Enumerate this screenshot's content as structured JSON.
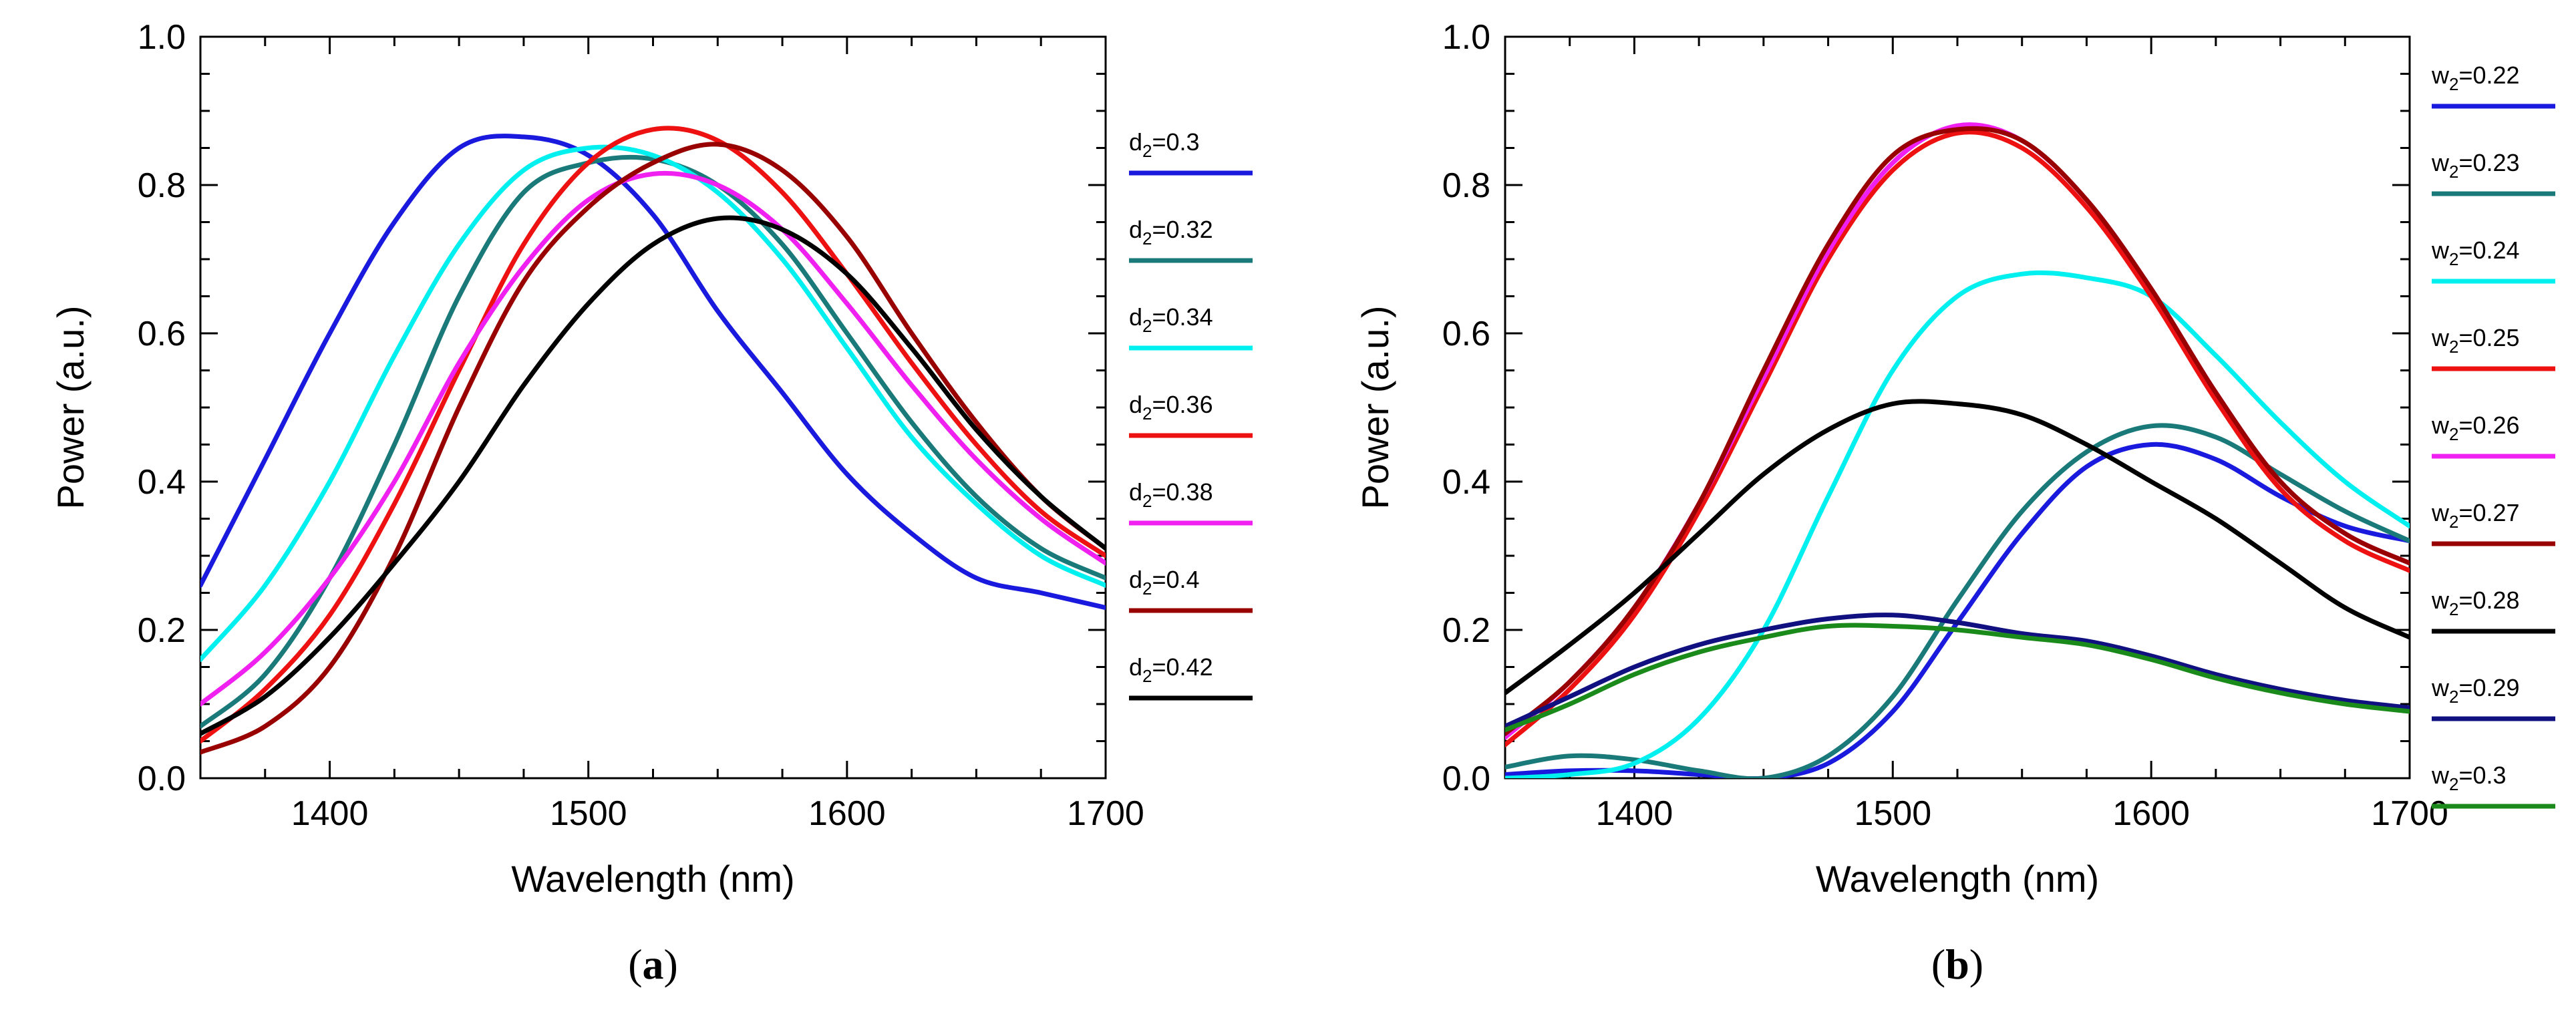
{
  "chart_data": [
    {
      "panel_label_prefix": "(",
      "panel_label_letter": "a",
      "panel_label_suffix": ")",
      "type": "line",
      "xlabel": "Wavelength (nm)",
      "ylabel": "Power (a.u.)",
      "xlim": [
        1350,
        1700
      ],
      "ylim": [
        0,
        1.0
      ],
      "xticks": [
        1400,
        1500,
        1600,
        1700
      ],
      "yticks": [
        0.0,
        0.2,
        0.4,
        0.6,
        0.8,
        1.0
      ],
      "ytick_labels": [
        "0.0",
        "0.2",
        "0.4",
        "0.6",
        "0.8",
        "1.0"
      ],
      "legend_position": "right",
      "series": [
        {
          "name": "d2=0.3",
          "label_base": "d",
          "label_sub": "2",
          "label_value": "=0.3",
          "color": "#1a1adf",
          "x": [
            1350,
            1375,
            1400,
            1425,
            1450,
            1475,
            1500,
            1525,
            1550,
            1575,
            1600,
            1625,
            1650,
            1675,
            1700
          ],
          "y": [
            0.26,
            0.43,
            0.6,
            0.75,
            0.85,
            0.865,
            0.84,
            0.76,
            0.63,
            0.52,
            0.41,
            0.33,
            0.27,
            0.25,
            0.23
          ]
        },
        {
          "name": "d2=0.32",
          "label_base": "d",
          "label_sub": "2",
          "label_value": "=0.32",
          "color": "#1a7a7a",
          "x": [
            1350,
            1375,
            1400,
            1425,
            1450,
            1475,
            1500,
            1525,
            1550,
            1575,
            1600,
            1625,
            1650,
            1675,
            1700
          ],
          "y": [
            0.07,
            0.14,
            0.27,
            0.45,
            0.65,
            0.79,
            0.83,
            0.835,
            0.8,
            0.72,
            0.6,
            0.48,
            0.38,
            0.31,
            0.27
          ]
        },
        {
          "name": "d2=0.34",
          "label_base": "d",
          "label_sub": "2",
          "label_value": "=0.34",
          "color": "#00f0f0",
          "x": [
            1350,
            1375,
            1400,
            1425,
            1450,
            1475,
            1500,
            1525,
            1550,
            1575,
            1600,
            1625,
            1650,
            1675,
            1700
          ],
          "y": [
            0.16,
            0.26,
            0.4,
            0.57,
            0.72,
            0.82,
            0.85,
            0.84,
            0.79,
            0.7,
            0.58,
            0.46,
            0.37,
            0.3,
            0.26
          ]
        },
        {
          "name": "d2=0.36",
          "label_base": "d",
          "label_sub": "2",
          "label_value": "=0.36",
          "color": "#ee1111",
          "x": [
            1350,
            1375,
            1400,
            1425,
            1450,
            1475,
            1500,
            1525,
            1550,
            1575,
            1600,
            1625,
            1650,
            1675,
            1700
          ],
          "y": [
            0.05,
            0.12,
            0.22,
            0.37,
            0.55,
            0.72,
            0.83,
            0.875,
            0.86,
            0.79,
            0.68,
            0.56,
            0.45,
            0.36,
            0.3
          ]
        },
        {
          "name": "d2=0.38",
          "label_base": "d",
          "label_sub": "2",
          "label_value": "=0.38",
          "color": "#f020f0",
          "x": [
            1350,
            1375,
            1400,
            1425,
            1450,
            1475,
            1500,
            1525,
            1550,
            1575,
            1600,
            1625,
            1650,
            1675,
            1700
          ],
          "y": [
            0.1,
            0.17,
            0.27,
            0.4,
            0.56,
            0.69,
            0.78,
            0.815,
            0.8,
            0.74,
            0.64,
            0.53,
            0.43,
            0.35,
            0.29
          ]
        },
        {
          "name": "d2=0.4",
          "label_base": "d",
          "label_sub": "2",
          "label_value": "=0.4",
          "color": "#990000",
          "x": [
            1350,
            1375,
            1400,
            1425,
            1450,
            1475,
            1500,
            1525,
            1550,
            1575,
            1600,
            1625,
            1650,
            1675,
            1700
          ],
          "y": [
            0.035,
            0.07,
            0.15,
            0.3,
            0.5,
            0.67,
            0.77,
            0.83,
            0.855,
            0.82,
            0.73,
            0.6,
            0.48,
            0.38,
            0.31
          ]
        },
        {
          "name": "d2=0.42",
          "label_base": "d",
          "label_sub": "2",
          "label_value": "=0.42",
          "color": "#000000",
          "x": [
            1350,
            1375,
            1400,
            1425,
            1450,
            1475,
            1500,
            1525,
            1550,
            1575,
            1600,
            1625,
            1650,
            1675,
            1700
          ],
          "y": [
            0.06,
            0.11,
            0.19,
            0.29,
            0.4,
            0.53,
            0.64,
            0.72,
            0.755,
            0.74,
            0.68,
            0.58,
            0.47,
            0.38,
            0.31
          ]
        }
      ]
    },
    {
      "panel_label_prefix": "(",
      "panel_label_letter": "b",
      "panel_label_suffix": ")",
      "type": "line",
      "xlabel": "Wavelength (nm)",
      "ylabel": "Power (a.u.)",
      "xlim": [
        1350,
        1700
      ],
      "ylim": [
        0,
        1.0
      ],
      "xticks": [
        1400,
        1500,
        1600,
        1700
      ],
      "yticks": [
        0.0,
        0.2,
        0.4,
        0.6,
        0.8,
        1.0
      ],
      "ytick_labels": [
        "0.0",
        "0.2",
        "0.4",
        "0.6",
        "0.8",
        "1.0"
      ],
      "legend_position": "right",
      "series": [
        {
          "name": "w2=0.22",
          "label_base": "w",
          "label_sub": "2",
          "label_value": "=0.22",
          "color": "#1a1adf",
          "x": [
            1350,
            1375,
            1400,
            1425,
            1450,
            1475,
            1500,
            1525,
            1550,
            1575,
            1600,
            1625,
            1650,
            1675,
            1700
          ],
          "y": [
            0.005,
            0.01,
            0.01,
            0.005,
            0.0,
            0.02,
            0.09,
            0.21,
            0.33,
            0.42,
            0.45,
            0.43,
            0.38,
            0.34,
            0.32
          ]
        },
        {
          "name": "w2=0.23",
          "label_base": "w",
          "label_sub": "2",
          "label_value": "=0.23",
          "color": "#1a7a7a",
          "x": [
            1350,
            1375,
            1400,
            1425,
            1450,
            1475,
            1500,
            1525,
            1550,
            1575,
            1600,
            1625,
            1650,
            1675,
            1700
          ],
          "y": [
            0.015,
            0.03,
            0.025,
            0.01,
            0.0,
            0.03,
            0.11,
            0.24,
            0.36,
            0.44,
            0.475,
            0.46,
            0.41,
            0.36,
            0.32
          ]
        },
        {
          "name": "w2=0.24",
          "label_base": "w",
          "label_sub": "2",
          "label_value": "=0.24",
          "color": "#00f0f0",
          "x": [
            1350,
            1375,
            1400,
            1425,
            1450,
            1475,
            1500,
            1525,
            1550,
            1575,
            1600,
            1625,
            1650,
            1675,
            1700
          ],
          "y": [
            0.0,
            0.005,
            0.02,
            0.08,
            0.2,
            0.38,
            0.55,
            0.65,
            0.68,
            0.675,
            0.65,
            0.57,
            0.48,
            0.4,
            0.34
          ]
        },
        {
          "name": "w2=0.25",
          "label_base": "w",
          "label_sub": "2",
          "label_value": "=0.25",
          "color": "#ee1111",
          "x": [
            1350,
            1375,
            1400,
            1425,
            1450,
            1475,
            1500,
            1525,
            1550,
            1575,
            1600,
            1625,
            1650,
            1675,
            1700
          ],
          "y": [
            0.045,
            0.12,
            0.22,
            0.36,
            0.53,
            0.7,
            0.82,
            0.87,
            0.85,
            0.77,
            0.65,
            0.51,
            0.39,
            0.32,
            0.28
          ]
        },
        {
          "name": "w2=0.26",
          "label_base": "w",
          "label_sub": "2",
          "label_value": "=0.26",
          "color": "#f020f0",
          "x": [
            1350,
            1375,
            1400,
            1425,
            1450,
            1475,
            1500,
            1525,
            1550,
            1575,
            1600,
            1625,
            1650,
            1675,
            1700
          ],
          "y": [
            0.055,
            0.13,
            0.23,
            0.37,
            0.54,
            0.71,
            0.83,
            0.88,
            0.86,
            0.78,
            0.66,
            0.52,
            0.4,
            0.33,
            0.29
          ]
        },
        {
          "name": "w2=0.27",
          "label_base": "w",
          "label_sub": "2",
          "label_value": "=0.27",
          "color": "#990000",
          "x": [
            1350,
            1375,
            1400,
            1425,
            1450,
            1475,
            1500,
            1525,
            1550,
            1575,
            1600,
            1625,
            1650,
            1675,
            1700
          ],
          "y": [
            0.06,
            0.13,
            0.23,
            0.37,
            0.55,
            0.72,
            0.84,
            0.875,
            0.86,
            0.78,
            0.66,
            0.52,
            0.4,
            0.33,
            0.29
          ]
        },
        {
          "name": "w2=0.28",
          "label_base": "w",
          "label_sub": "2",
          "label_value": "=0.28",
          "color": "#000000",
          "x": [
            1350,
            1375,
            1400,
            1425,
            1450,
            1475,
            1500,
            1525,
            1550,
            1575,
            1600,
            1625,
            1650,
            1675,
            1700
          ],
          "y": [
            0.115,
            0.18,
            0.25,
            0.33,
            0.41,
            0.47,
            0.505,
            0.505,
            0.49,
            0.45,
            0.4,
            0.35,
            0.29,
            0.23,
            0.19
          ]
        },
        {
          "name": "w2=0.29",
          "label_base": "w",
          "label_sub": "2",
          "label_value": "=0.29",
          "color": "#101080",
          "x": [
            1350,
            1375,
            1400,
            1425,
            1450,
            1475,
            1500,
            1525,
            1550,
            1575,
            1600,
            1625,
            1650,
            1675,
            1700
          ],
          "y": [
            0.07,
            0.11,
            0.15,
            0.18,
            0.2,
            0.215,
            0.22,
            0.21,
            0.195,
            0.185,
            0.165,
            0.14,
            0.12,
            0.105,
            0.095
          ]
        },
        {
          "name": "w2=0.3",
          "label_base": "w",
          "label_sub": "2",
          "label_value": "=0.3",
          "color": "#1a8a1a",
          "x": [
            1350,
            1375,
            1400,
            1425,
            1450,
            1475,
            1500,
            1525,
            1550,
            1575,
            1600,
            1625,
            1650,
            1675,
            1700
          ],
          "y": [
            0.065,
            0.1,
            0.14,
            0.17,
            0.19,
            0.205,
            0.205,
            0.2,
            0.19,
            0.18,
            0.16,
            0.135,
            0.115,
            0.1,
            0.09
          ]
        }
      ]
    }
  ]
}
